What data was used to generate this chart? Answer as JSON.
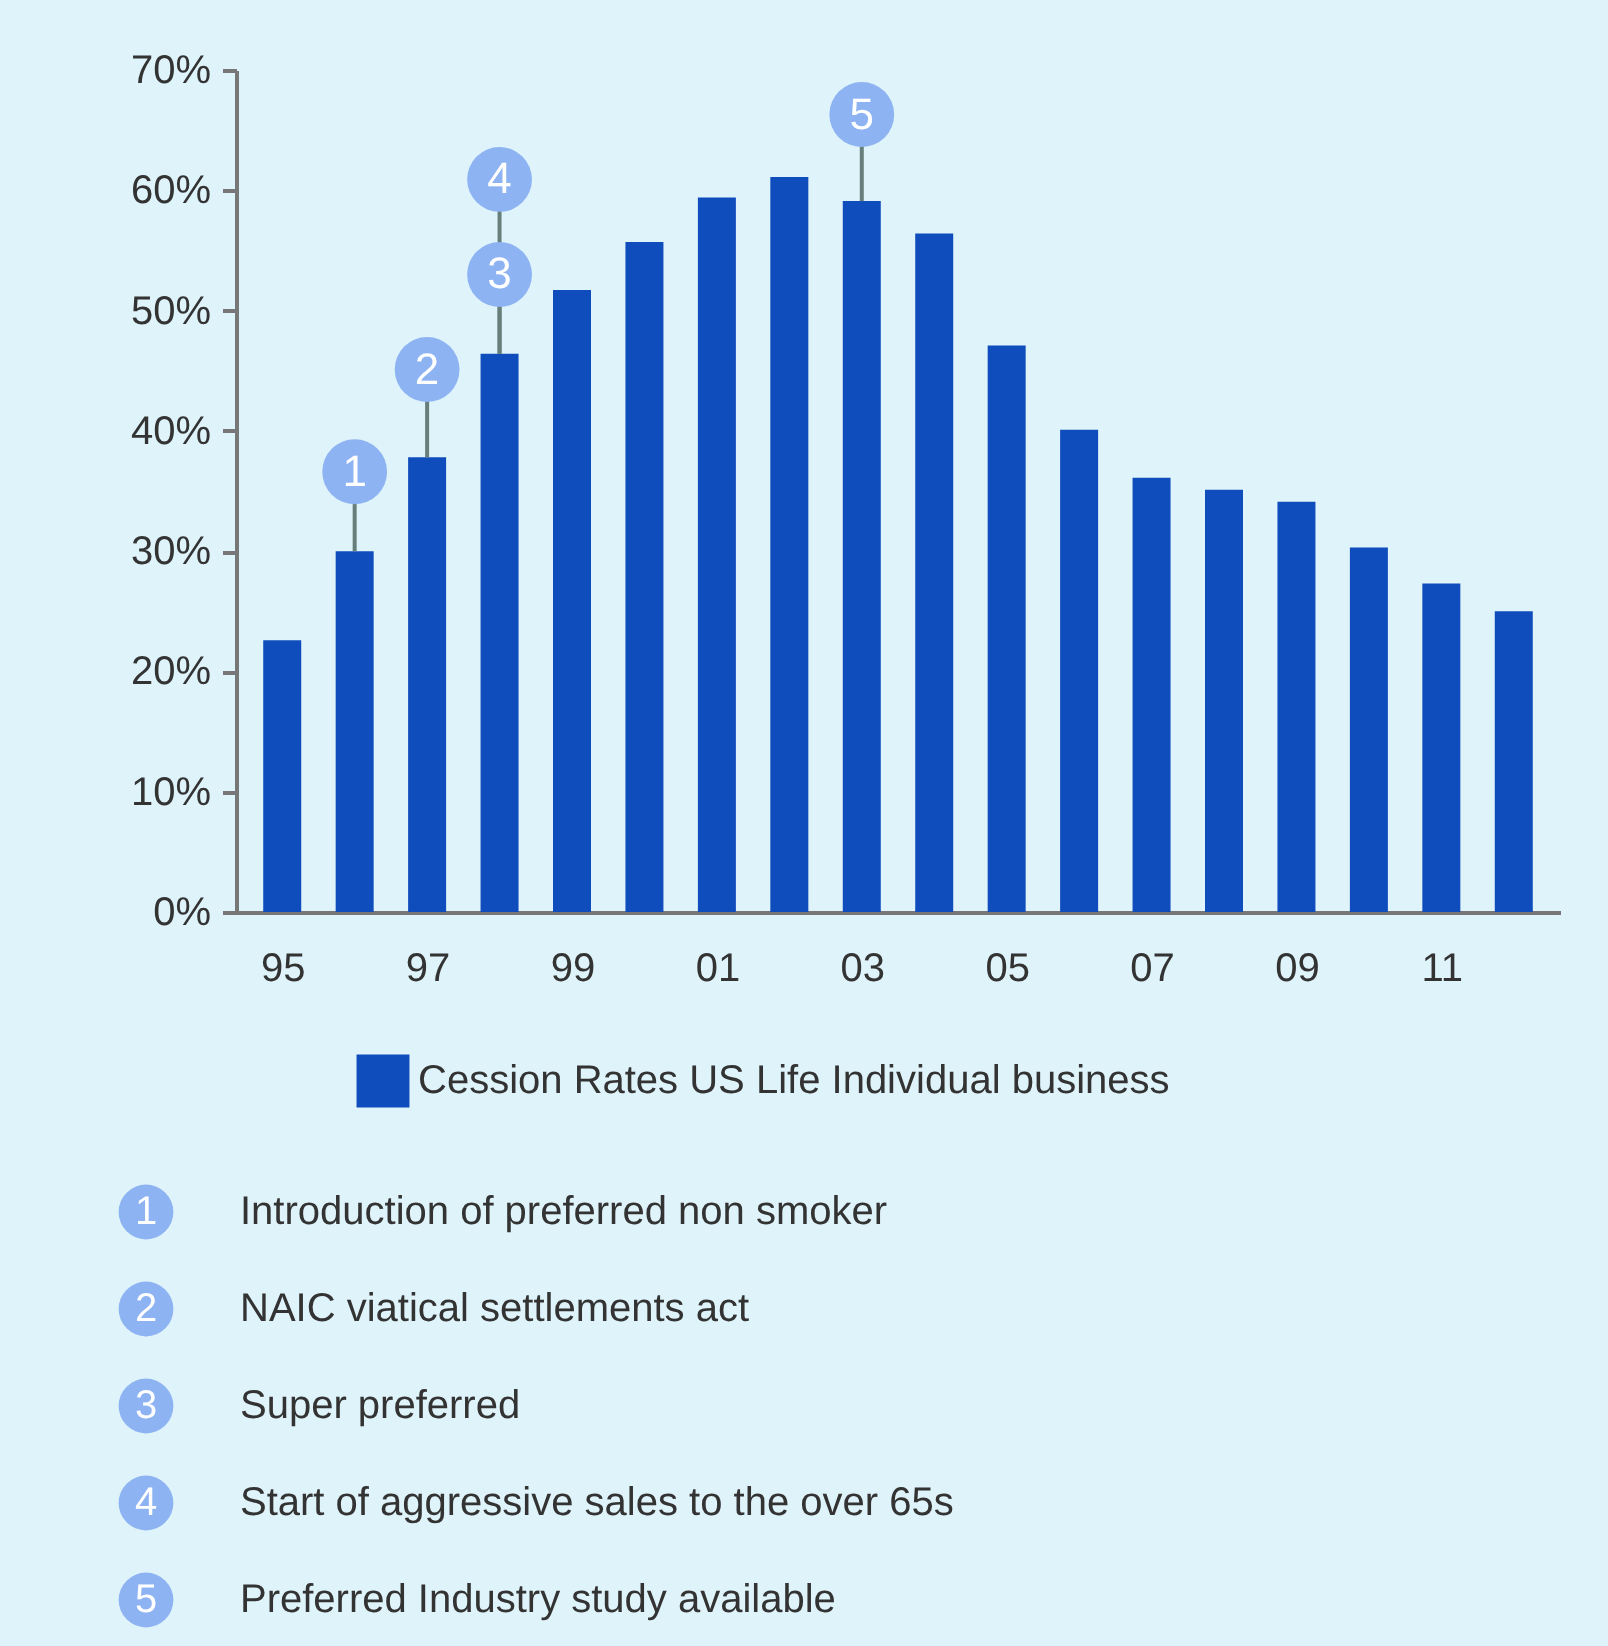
{
  "chart_data": {
    "type": "bar",
    "x": [
      1995,
      1996,
      1997,
      1998,
      1999,
      2000,
      2001,
      2002,
      2003,
      2004,
      2005,
      2006,
      2007,
      2008,
      2009,
      2010,
      2011,
      2012
    ],
    "series": [
      {
        "name": "Cession Rates US Life Individual business",
        "color": "#104dbc",
        "values": [
          22.6,
          30,
          37.8,
          46.4,
          51.7,
          55.7,
          59.4,
          61.1,
          59.1,
          56.4,
          47.1,
          40.1,
          36.1,
          35.1,
          34.1,
          30.3,
          27.3,
          25
        ]
      }
    ],
    "xlim": [
      1994.5,
      2012.5
    ],
    "xticks": [
      {
        "value": 1995,
        "label": "95"
      },
      {
        "value": 1997,
        "label": "97"
      },
      {
        "value": 1999,
        "label": "99"
      },
      {
        "value": 2001,
        "label": "01"
      },
      {
        "value": 2003,
        "label": "03"
      },
      {
        "value": 2005,
        "label": "05"
      },
      {
        "value": 2007,
        "label": "07"
      },
      {
        "value": 2009,
        "label": "09"
      },
      {
        "value": 2011,
        "label": "11"
      }
    ],
    "ylim": [
      0,
      70
    ],
    "yticks": [
      {
        "value": 0,
        "label": "0%"
      },
      {
        "value": 10,
        "label": "10%"
      },
      {
        "value": 20,
        "label": "20%"
      },
      {
        "value": 30,
        "label": "30%"
      },
      {
        "value": 40,
        "label": "40%"
      },
      {
        "value": 50,
        "label": "50%"
      },
      {
        "value": 60,
        "label": "60%"
      },
      {
        "value": 70,
        "label": "70%"
      }
    ],
    "annotations": [
      {
        "text": "1",
        "x": 1996,
        "y": 36.6
      },
      {
        "text": "2",
        "x": 1997,
        "y": 45.1
      },
      {
        "text": "3",
        "x": 1998,
        "y": 53
      },
      {
        "text": "4",
        "x": 1998,
        "y": 60.9
      },
      {
        "text": "5",
        "x": 2003,
        "y": 66.3
      },
      "1 Introduction of preferred non smoker",
      "2 NAIC viatical settlements act",
      "3 Super preferred",
      "4 Start of aggressive sales to the over 65s",
      "5 Preferred Industry study available"
    ],
    "grid": false,
    "legend": "bottom"
  }
}
